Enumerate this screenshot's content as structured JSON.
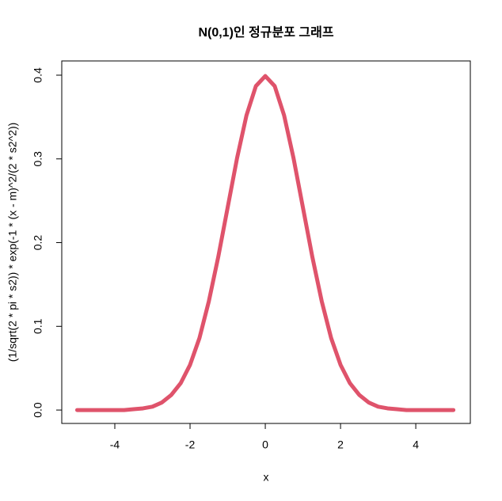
{
  "chart_data": {
    "type": "line",
    "title": "N(0,1)인 정규분포 그래프",
    "x_label": "x",
    "y_label": "(1/sqrt(2 * pi * s2)) * exp(-1 * (x - m)^2/(2 * s2^2))",
    "x": [
      -5,
      -4.75,
      -4.5,
      -4.25,
      -4,
      -3.75,
      -3.5,
      -3.25,
      -3,
      -2.75,
      -2.5,
      -2.25,
      -2,
      -1.75,
      -1.5,
      -1.25,
      -1,
      -0.75,
      -0.5,
      -0.25,
      0,
      0.25,
      0.5,
      0.75,
      1,
      1.25,
      1.5,
      1.75,
      2,
      2.25,
      2.5,
      2.75,
      3,
      3.25,
      3.5,
      3.75,
      4,
      4.25,
      4.5,
      4.75,
      5
    ],
    "values": [
      0,
      0,
      0,
      0,
      0,
      0,
      0.001,
      0.002,
      0.004,
      0.009,
      0.018,
      0.032,
      0.054,
      0.086,
      0.13,
      0.183,
      0.242,
      0.301,
      0.352,
      0.387,
      0.399,
      0.387,
      0.352,
      0.301,
      0.242,
      0.183,
      0.13,
      0.086,
      0.054,
      0.032,
      0.018,
      0.009,
      0.004,
      0.002,
      0.001,
      0,
      0,
      0,
      0,
      0,
      0
    ],
    "color": "#df536b",
    "xlim": [
      -5.41,
      5.45
    ],
    "xticks": [
      -4,
      -2,
      0,
      2,
      4
    ],
    "ylim": [
      -0.016,
      0.417
    ],
    "yticks": [
      {
        "value": 0,
        "label": "0.0"
      },
      0.1,
      0.2,
      0.3,
      0.4
    ]
  }
}
